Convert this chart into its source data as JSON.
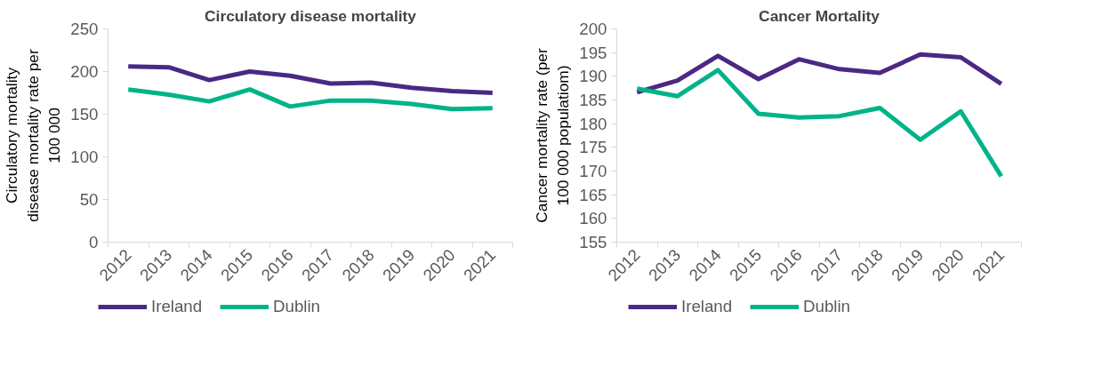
{
  "chart_data": [
    {
      "type": "line",
      "title": "Circulatory disease mortality",
      "ylabel": "Circulatory mortality disease mortality rate per 100 000",
      "categories": [
        "2012",
        "2013",
        "2014",
        "2015",
        "2016",
        "2017",
        "2018",
        "2019",
        "2020",
        "2021"
      ],
      "series": [
        {
          "name": "Ireland",
          "color": "#4b2884",
          "values": [
            206,
            205,
            190,
            200,
            195,
            186,
            187,
            181,
            177,
            175
          ]
        },
        {
          "name": "Dublin",
          "color": "#00b388",
          "values": [
            179,
            173,
            165,
            179,
            159,
            166,
            166,
            162,
            156,
            157
          ]
        }
      ],
      "ylim": [
        0,
        250
      ],
      "yticks": [
        0,
        50,
        100,
        150,
        200,
        250
      ],
      "grid": false,
      "legend": "bottom",
      "marker": "none",
      "line_style": "solid"
    },
    {
      "type": "line",
      "title": "Cancer Mortality",
      "ylabel": "Cancer mortality rate (per 100 000 populatiom)",
      "categories": [
        "2012",
        "2013",
        "2014",
        "2015",
        "2016",
        "2017",
        "2018",
        "2019",
        "2020",
        "2021"
      ],
      "series": [
        {
          "name": "Ireland",
          "color": "#4b2884",
          "values": [
            186.6,
            189.1,
            194.3,
            189.4,
            193.6,
            191.5,
            190.7,
            194.6,
            194.0,
            188.4
          ]
        },
        {
          "name": "Dublin",
          "color": "#00b388",
          "values": [
            187.4,
            185.8,
            191.3,
            182.1,
            181.3,
            181.6,
            183.3,
            176.6,
            182.6,
            168.9
          ]
        }
      ],
      "ylim": [
        155,
        200
      ],
      "yticks": [
        155,
        160,
        165,
        170,
        175,
        180,
        185,
        190,
        195,
        200
      ],
      "grid": false,
      "legend": "bottom",
      "marker": "none",
      "line_style": "solid"
    }
  ]
}
